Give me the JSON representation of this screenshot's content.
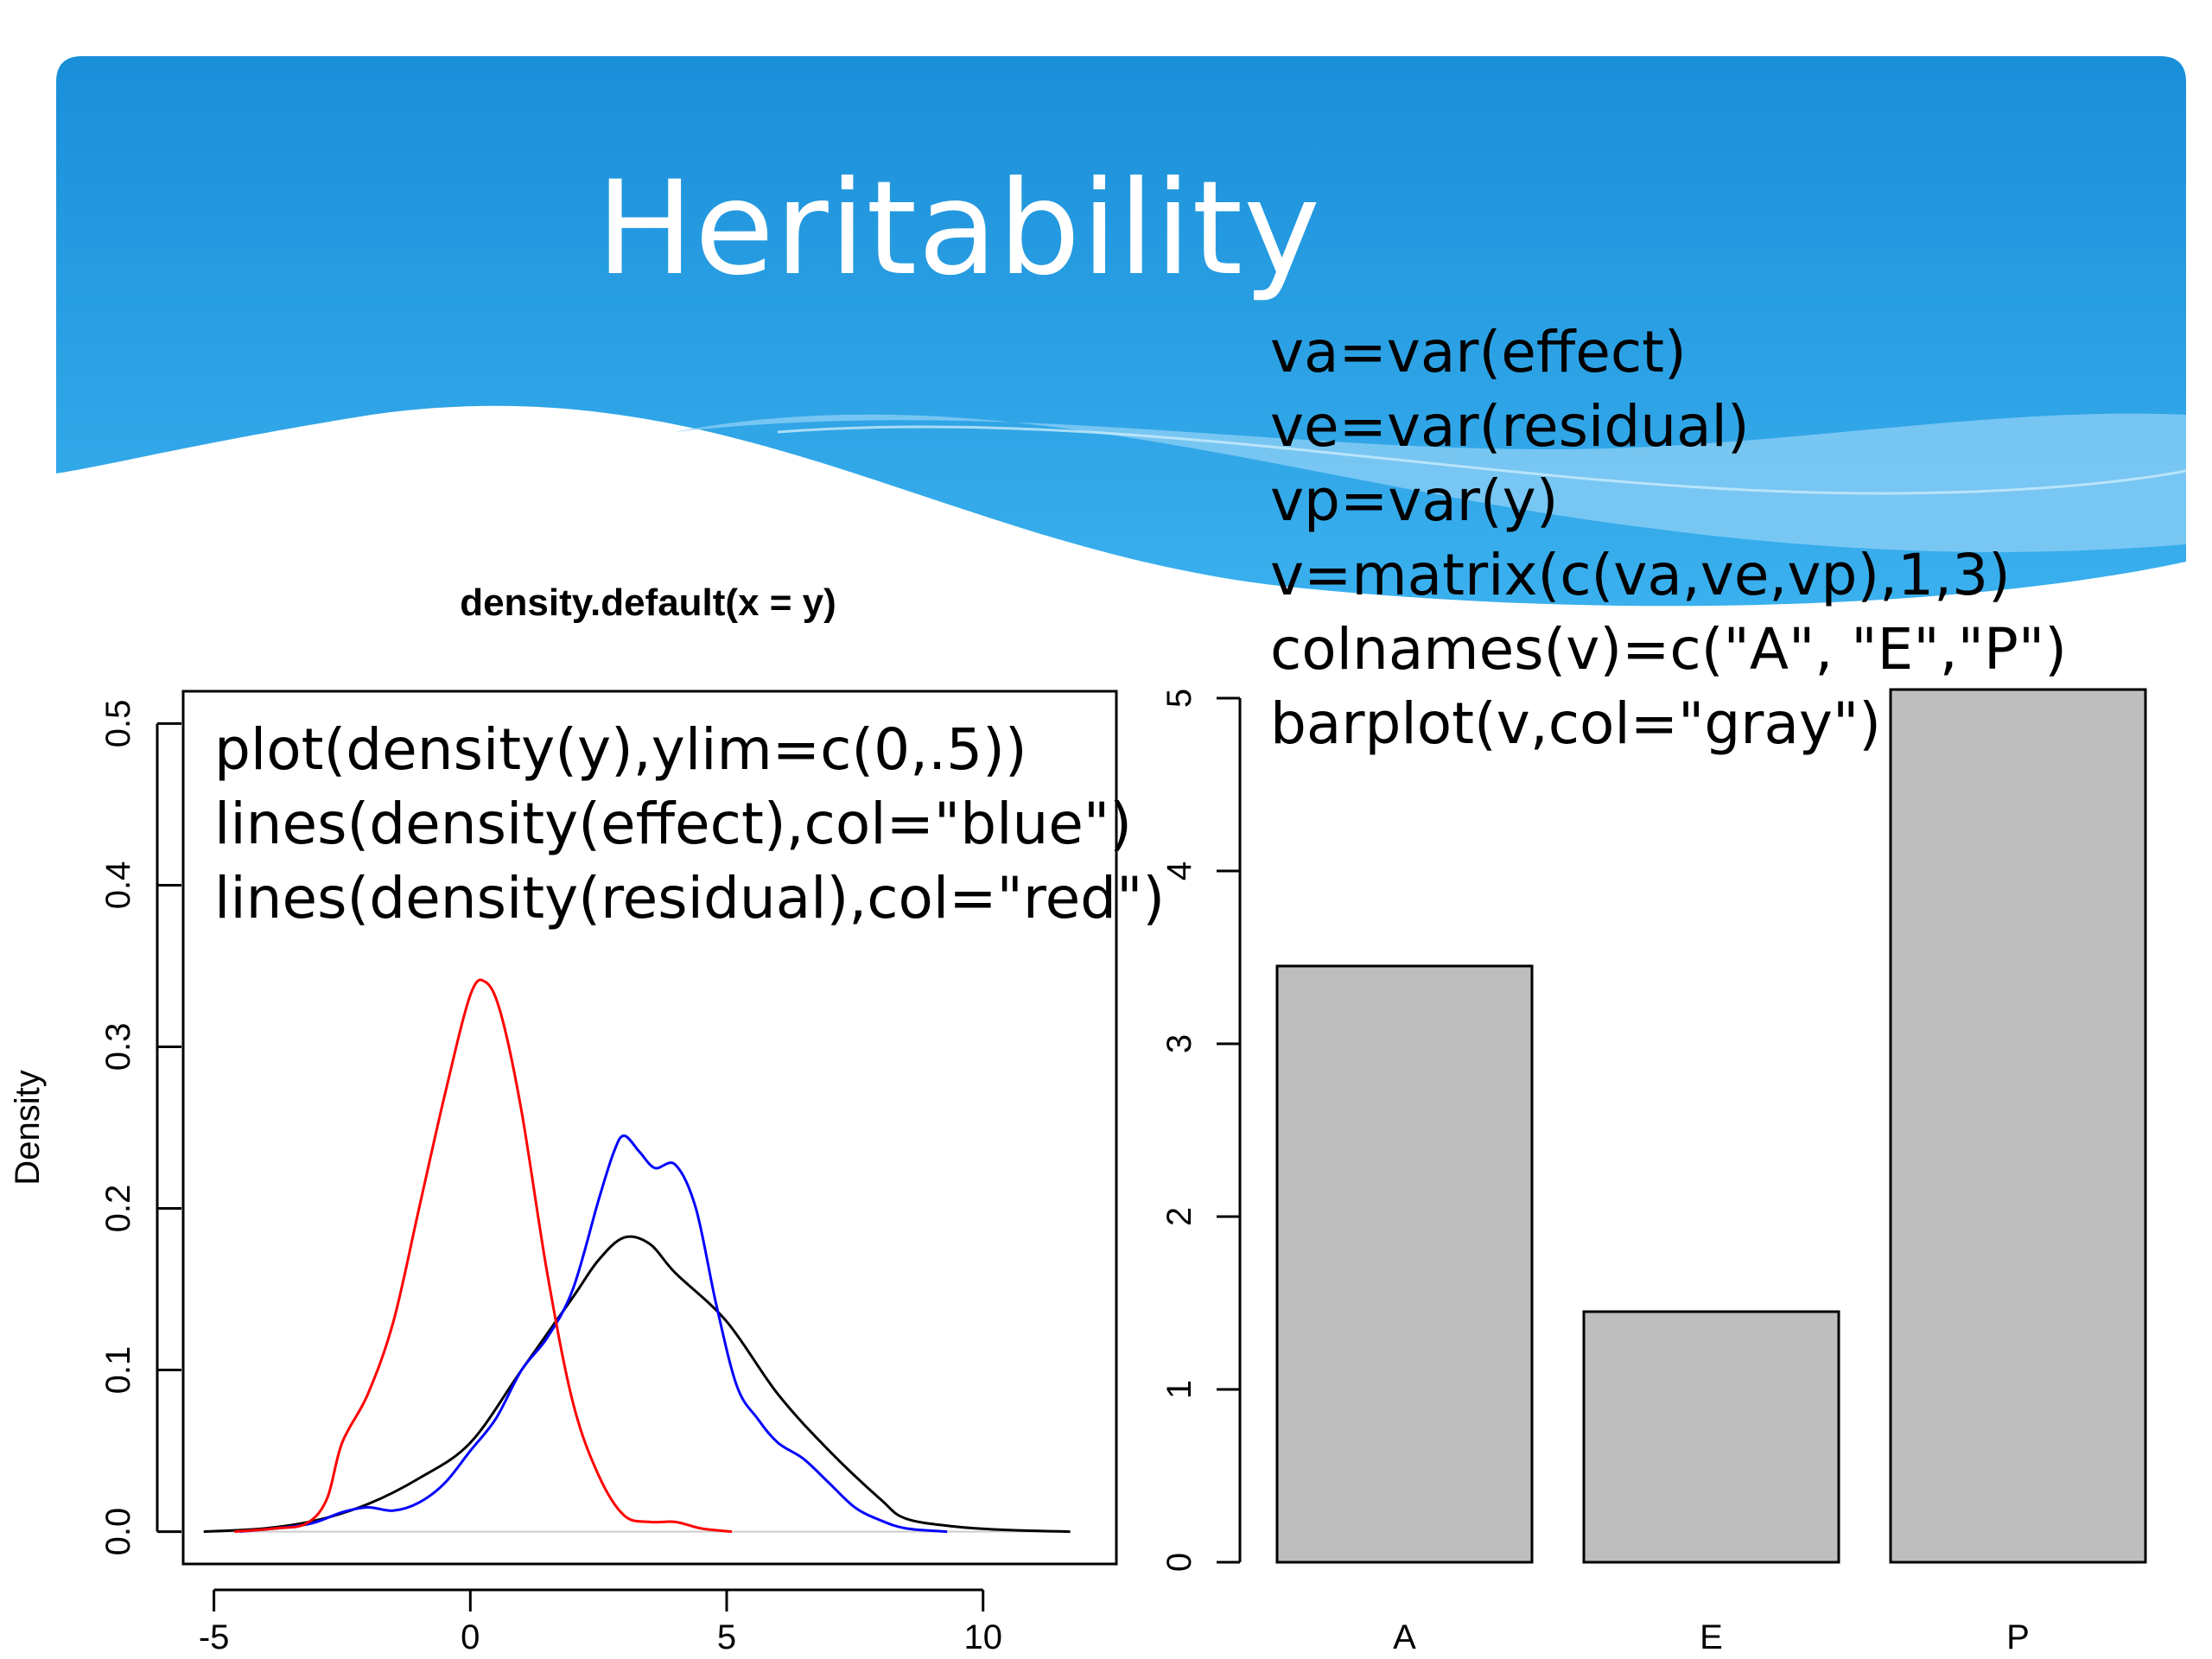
{
  "slide": {
    "title": "Heritability",
    "code_right": [
      "va=var(effect)",
      "ve=var(residual)",
      "vp=var(y)",
      "v=matrix(c(va,ve,vp),1,3)",
      "colnames(v)=c(\"A\", \"E\",\"P\")",
      "barplot(v,col=\"gray\")"
    ],
    "code_left": [
      "plot(density(y),ylim=c(0,.5))",
      "lines(density(effect),col=\"blue\")",
      "lines(density(residual),col=\"red\")"
    ],
    "banner_colors": {
      "top": "#1a8fd9",
      "bottom": "#3ab0ee",
      "wave": "#8fd0f6"
    }
  },
  "chart_data": [
    {
      "type": "line",
      "title": "density.default(x = y)",
      "xlabel": "",
      "ylabel": "Density",
      "xlim": [
        -5.6,
        12.6
      ],
      "ylim": [
        -0.02,
        0.52
      ],
      "xticks": [
        -5,
        0,
        5,
        10
      ],
      "xtick_labels": [
        "-5",
        "0",
        "5",
        "10"
      ],
      "yticks": [
        0.0,
        0.1,
        0.2,
        0.3,
        0.4,
        0.5
      ],
      "ytick_labels": [
        "0.0",
        "0.1",
        "0.2",
        "0.3",
        "0.4",
        "0.5"
      ],
      "grid": false,
      "series": [
        {
          "color": "#000000",
          "x": [
            -5.2,
            -4.0,
            -3.0,
            -2.0,
            -1.0,
            0.0,
            1.0,
            2.0,
            2.5,
            3.0,
            3.5,
            4.0,
            5.0,
            6.0,
            7.0,
            8.0,
            8.5,
            9.5,
            10.5,
            11.7
          ],
          "y": [
            0.0,
            0.002,
            0.007,
            0.017,
            0.033,
            0.055,
            0.1,
            0.145,
            0.168,
            0.182,
            0.178,
            0.16,
            0.13,
            0.085,
            0.05,
            0.02,
            0.008,
            0.003,
            0.001,
            0.0
          ]
        },
        {
          "color": "#0000ff",
          "x": [
            -4.5,
            -3.5,
            -3.0,
            -2.5,
            -2.0,
            -1.5,
            -1.0,
            -0.5,
            0.0,
            0.5,
            1.0,
            1.5,
            2.0,
            2.5,
            2.8,
            3.0,
            3.3,
            3.6,
            4.0,
            4.4,
            4.8,
            5.2,
            5.6,
            6.0,
            6.5,
            7.0,
            7.5,
            8.0,
            8.5,
            9.3
          ],
          "y": [
            0.0,
            0.003,
            0.006,
            0.012,
            0.015,
            0.013,
            0.018,
            0.03,
            0.05,
            0.07,
            0.1,
            0.12,
            0.15,
            0.205,
            0.235,
            0.245,
            0.235,
            0.225,
            0.227,
            0.2,
            0.14,
            0.09,
            0.07,
            0.055,
            0.045,
            0.03,
            0.015,
            0.007,
            0.002,
            0.0
          ]
        },
        {
          "color": "#ff0000",
          "x": [
            -4.6,
            -3.8,
            -3.2,
            -2.8,
            -2.5,
            -2.0,
            -1.5,
            -1.0,
            -0.5,
            0.0,
            0.3,
            0.6,
            1.0,
            1.5,
            2.0,
            2.5,
            3.0,
            3.5,
            4.0,
            4.5,
            5.1
          ],
          "y": [
            0.0,
            0.002,
            0.005,
            0.02,
            0.055,
            0.085,
            0.13,
            0.2,
            0.27,
            0.332,
            0.34,
            0.32,
            0.26,
            0.16,
            0.08,
            0.035,
            0.01,
            0.006,
            0.006,
            0.002,
            0.0
          ]
        }
      ],
      "baseline_color": "#cccccc"
    },
    {
      "type": "bar",
      "categories": [
        "A",
        "E",
        "P"
      ],
      "values": [
        3.45,
        1.45,
        5.05
      ],
      "ylim": [
        0,
        5.2
      ],
      "yticks": [
        0,
        1,
        2,
        3,
        4,
        5
      ],
      "ytick_labels": [
        "0",
        "1",
        "2",
        "3",
        "4",
        "5"
      ],
      "bar_color": "#bebebe",
      "title": "",
      "xlabel": "",
      "ylabel": ""
    }
  ]
}
